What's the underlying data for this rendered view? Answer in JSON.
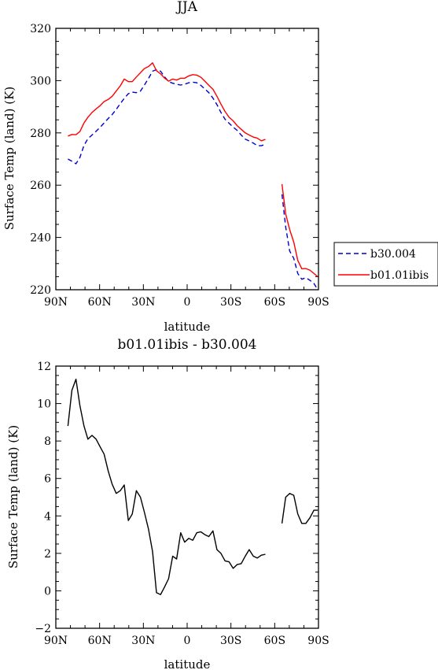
{
  "chart_data": [
    {
      "type": "line",
      "title": "JJA",
      "xlabel": "latitude",
      "ylabel": "Surface Temp (land) (K)",
      "xlim": [
        90,
        -90
      ],
      "ylim": [
        220,
        320
      ],
      "x_tick_values": [
        90,
        60,
        30,
        0,
        -30,
        -60,
        -90
      ],
      "x_tick_labels": [
        "90N",
        "60N",
        "30N",
        "0",
        "30S",
        "60S",
        "90S"
      ],
      "y_tick_values": [
        220,
        240,
        260,
        280,
        300,
        320
      ],
      "y_tick_labels": [
        "220",
        "240",
        "260",
        "280",
        "300",
        "320"
      ],
      "legend": {
        "placement": "right"
      },
      "series": [
        {
          "name": "b30.004",
          "color": "#0000cc",
          "dash": "dashed",
          "x": [
            [
              81.7,
              79,
              76.2,
              73.5,
              70.7,
              68,
              65.2,
              62.4,
              59.7,
              56.9,
              54.1,
              51.4,
              48.6,
              45.8,
              43.1,
              40.3,
              37.6,
              34.8,
              32,
              29.3,
              26.5,
              23.7,
              21,
              18.2,
              15.5,
              12.7,
              9.9,
              7.2,
              4.4,
              1.7,
              -1.1,
              -3.9,
              -6.6,
              -9.4,
              -12.1,
              -14.9,
              -17.7,
              -20.4,
              -23.2,
              -26,
              -28.7,
              -31.5,
              -34.2,
              -37,
              -39.8,
              -42.5,
              -45.3,
              -48,
              -50.8,
              -53.6
            ],
            [
              -65,
              -67.5,
              -70.3,
              -73.1,
              -75.8,
              -78.6,
              -81.3,
              -84.1,
              -86.9,
              -89.5
            ]
          ],
          "y": [
            [
              270,
              269.2,
              268.2,
              270.6,
              275.2,
              277.8,
              279.2,
              280.6,
              282.1,
              283.8,
              285.5,
              287,
              289,
              291.2,
              293.2,
              295,
              295.6,
              295.4,
              296,
              298.3,
              300.8,
              303.6,
              304.2,
              303.6,
              301.5,
              299.6,
              299,
              298.6,
              298.3,
              298.6,
              299.2,
              299.4,
              299.2,
              298.2,
              296.8,
              295.4,
              293.3,
              290.8,
              287.8,
              285.2,
              283.7,
              282.2,
              281,
              279.2,
              277.6,
              276.9,
              276.1,
              275.1,
              275.1,
              275.6
            ],
            [
              256.5,
              244,
              234.8,
              232,
              226.2,
              224,
              224.6,
              223.6,
              222.4,
              220
            ]
          ]
        },
        {
          "name": "b01.01ibis",
          "color": "#ff0000",
          "dash": "solid",
          "x": [
            [
              81.7,
              79,
              76.2,
              73.5,
              70.7,
              68,
              65.2,
              62.4,
              59.7,
              56.9,
              54.1,
              51.4,
              48.6,
              45.8,
              43.1,
              40.3,
              37.6,
              34.8,
              32,
              29.3,
              26.5,
              23.7,
              21,
              18.2,
              15.5,
              12.7,
              9.9,
              7.2,
              4.4,
              1.7,
              -1.1,
              -3.9,
              -6.6,
              -9.4,
              -12.1,
              -14.9,
              -17.7,
              -20.4,
              -23.2,
              -26,
              -28.7,
              -31.5,
              -34.2,
              -37,
              -39.8,
              -42.5,
              -45.3,
              -48,
              -50.8,
              -53.6
            ],
            [
              -65,
              -67.5,
              -70.3,
              -73.1,
              -75.8,
              -78.6,
              -81.3,
              -84.1,
              -86.9,
              -89.5
            ]
          ],
          "y": [
            [
              278.8,
              279.4,
              279.3,
              280.5,
              283.8,
              286,
              287.8,
              289.2,
              290.4,
              292,
              292.8,
              294,
              296,
              298,
              300.6,
              299.6,
              299.6,
              301.4,
              303,
              304.6,
              305.4,
              306.8,
              303.8,
              302.6,
              301,
              299.8,
              300.6,
              300.2,
              300.9,
              300.9,
              301.8,
              302.3,
              302.1,
              301.3,
              299.8,
              298.2,
              296.7,
              294,
              291,
              288.2,
              286,
              284.6,
              282.8,
              281.4,
              280,
              279.2,
              278.4,
              278,
              277,
              277.5
            ],
            [
              260.4,
              249,
              243,
              238.2,
              231.2,
              228,
              228.1,
              227.5,
              226.2,
              225
            ]
          ]
        }
      ]
    },
    {
      "type": "line",
      "title": "b01.01ibis - b30.004",
      "xlabel": "latitude",
      "ylabel": "Surface Temp (land) (K)",
      "xlim": [
        90,
        -90
      ],
      "ylim": [
        -2,
        12
      ],
      "x_tick_values": [
        90,
        60,
        30,
        0,
        -30,
        -60,
        -90
      ],
      "x_tick_labels": [
        "90N",
        "60N",
        "30N",
        "0",
        "30S",
        "60S",
        "90S"
      ],
      "y_tick_values": [
        -2,
        0,
        2,
        4,
        6,
        8,
        10,
        12
      ],
      "y_tick_labels": [
        "−2",
        "0",
        "2",
        "4",
        "6",
        "8",
        "10",
        "12"
      ],
      "series": [
        {
          "color": "#000000",
          "dash": "solid",
          "x": [
            [
              81.7,
              79,
              76.2,
              73.5,
              70.7,
              68,
              65.2,
              62.4,
              59.7,
              56.9,
              54.1,
              51.4,
              48.6,
              45.8,
              43.1,
              40.3,
              37.6,
              34.8,
              32,
              29.3,
              26.5,
              23.7,
              21,
              18.2,
              15.5,
              12.7,
              9.9,
              7.2,
              4.4,
              1.7,
              -1.1,
              -3.9,
              -6.6,
              -9.4,
              -12.1,
              -14.9,
              -17.7,
              -20.4,
              -23.2,
              -26,
              -28.7,
              -31.5,
              -34.2,
              -37,
              -39.8,
              -42.5,
              -45.3,
              -48,
              -50.8,
              -53.6
            ],
            [
              -65,
              -67.5,
              -70.3,
              -73.1,
              -75.8,
              -78.6,
              -81.3,
              -84.1,
              -86.9,
              -89.5
            ]
          ],
          "y": [
            [
              8.8,
              10.7,
              11.3,
              9.9,
              8.8,
              8.1,
              8.3,
              8.1,
              7.7,
              7.3,
              6.4,
              5.7,
              5.2,
              5.35,
              5.65,
              3.75,
              4.1,
              5.35,
              5,
              4.2,
              3.3,
              2.1,
              -0.1,
              -0.2,
              0.2,
              0.65,
              1.85,
              1.7,
              3.1,
              2.6,
              2.8,
              2.7,
              3.1,
              3.15,
              3,
              2.9,
              3.2,
              2.2,
              2,
              1.6,
              1.55,
              1.2,
              1.4,
              1.45,
              1.85,
              2.2,
              1.85,
              1.75,
              1.9,
              1.95
            ],
            [
              3.6,
              5,
              5.2,
              5.1,
              4.1,
              3.6,
              3.6,
              3.9,
              4.3,
              4.3
            ]
          ]
        }
      ]
    }
  ]
}
